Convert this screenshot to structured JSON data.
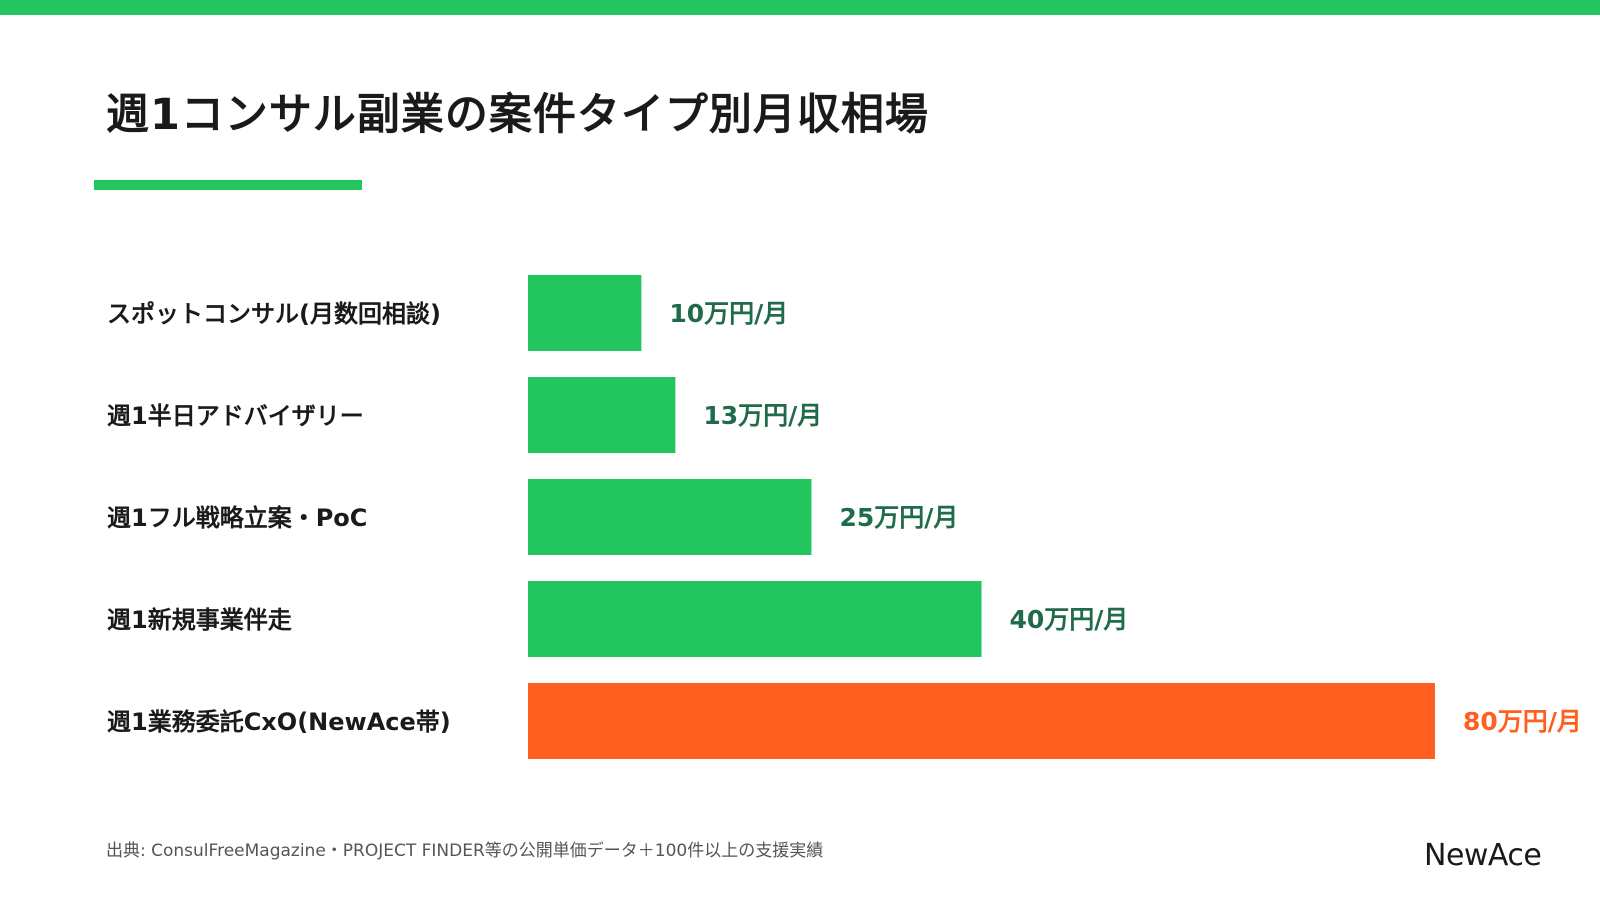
{
  "title": "週1コンサル副業の案件タイプ別月収相場",
  "source": "出典: ConsulFreeMagazine・PROJECT FINDER等の公開単価データ＋100件以上の支援実績",
  "logo": "NewAce",
  "colors": {
    "accent": "#22c55e",
    "highlight": "#ff5f1f",
    "value_text": "#1f6b4a"
  },
  "chart_data": {
    "type": "bar",
    "orientation": "horizontal",
    "categories": [
      "スポットコンサル(月数回相談)",
      "週1半日アドバイザリー",
      "週1フル戦略立案・PoC",
      "週1新規事業伴走",
      "週1業務委託CxO(NewAce帯)"
    ],
    "values": [
      10,
      13,
      25,
      40,
      80
    ],
    "value_labels": [
      "10万円/月",
      "13万円/月",
      "25万円/月",
      "40万円/月",
      "80万円/月"
    ],
    "highlighted_index": 4,
    "xlim": [
      0,
      80
    ]
  }
}
